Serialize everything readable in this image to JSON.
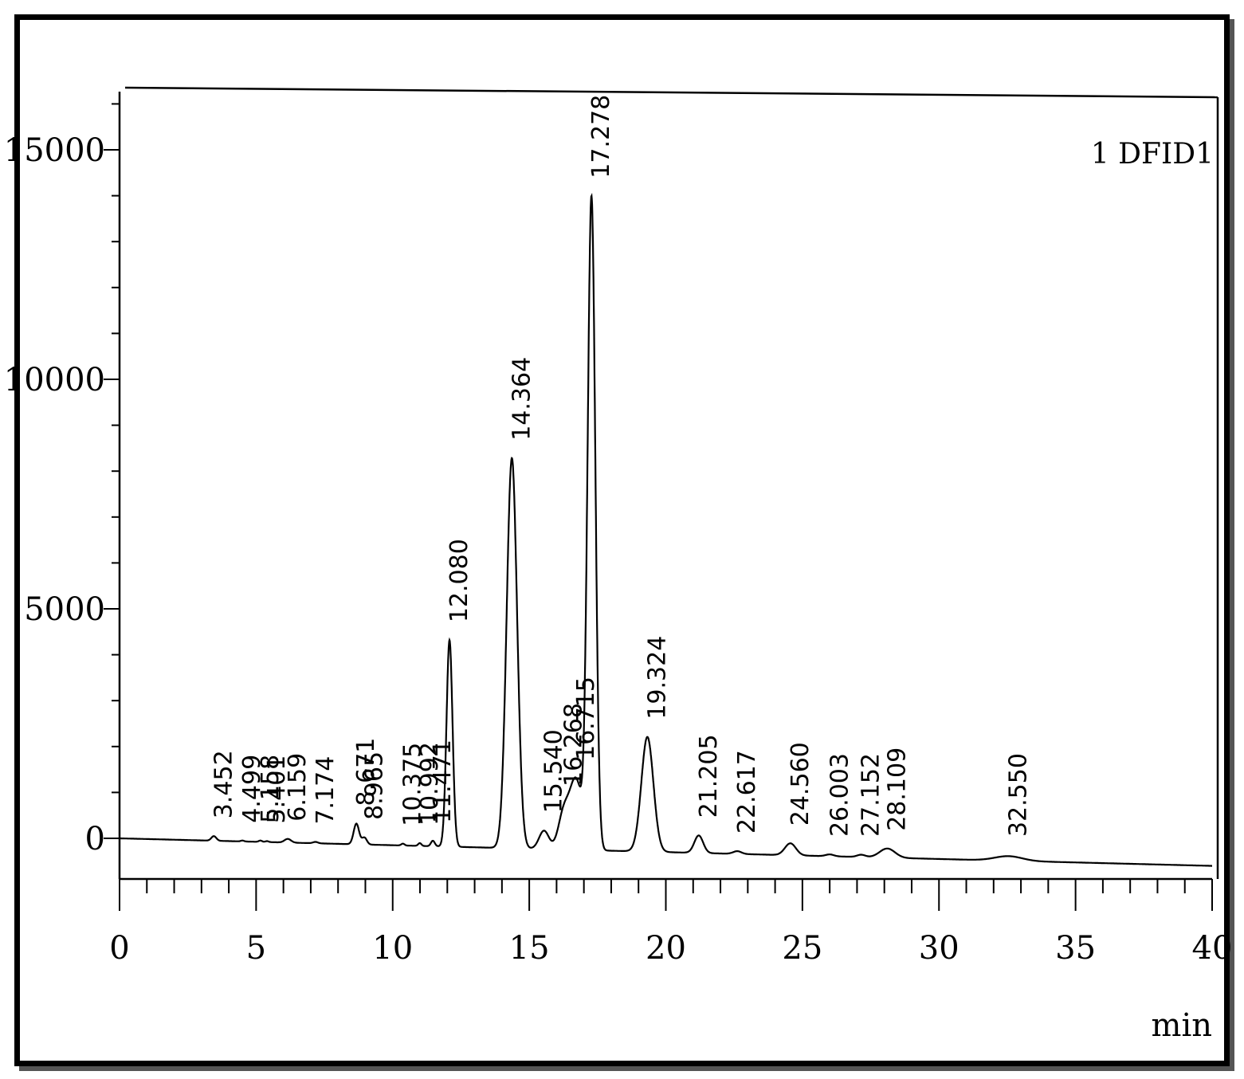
{
  "chart_data": {
    "type": "line",
    "title": "",
    "signal_label": "1 DFID1",
    "xlabel": "min",
    "ylabel": "",
    "xlim": [
      0,
      40
    ],
    "ylim": [
      -900,
      16000
    ],
    "x_ticks": [
      0,
      5,
      10,
      15,
      20,
      25,
      30,
      35,
      40
    ],
    "x_minor_step": 1,
    "y_ticks": [
      0,
      5000,
      10000,
      15000
    ],
    "y_minor_step": 1000,
    "grid": false,
    "legend": "none",
    "colors": {
      "trace": "#000000",
      "axes": "#000000",
      "frame": "#000000"
    },
    "baseline": {
      "start": 0,
      "end": -600
    },
    "peaks": [
      {
        "label": "3.452",
        "rt": 3.452,
        "height": 100,
        "width": 0.09
      },
      {
        "label": "4.499",
        "rt": 4.499,
        "height": 20,
        "width": 0.06
      },
      {
        "label": "5.158",
        "rt": 5.158,
        "height": 30,
        "width": 0.06
      },
      {
        "label": "5.401",
        "rt": 5.401,
        "height": 20,
        "width": 0.06
      },
      {
        "label": "6.159",
        "rt": 6.159,
        "height": 80,
        "width": 0.12
      },
      {
        "label": "7.174",
        "rt": 7.174,
        "height": 30,
        "width": 0.09
      },
      {
        "label": "8.671",
        "rt": 8.671,
        "height": 450,
        "width": 0.1
      },
      {
        "label": "8.965",
        "rt": 8.965,
        "height": 150,
        "width": 0.09
      },
      {
        "label": "10.375",
        "rt": 10.375,
        "height": 40,
        "width": 0.06
      },
      {
        "label": "10.992",
        "rt": 10.992,
        "height": 60,
        "width": 0.06
      },
      {
        "label": "11.471",
        "rt": 11.471,
        "height": 120,
        "width": 0.07
      },
      {
        "label": "12.080",
        "rt": 12.08,
        "height": 4500,
        "width": 0.11
      },
      {
        "label": "14.364",
        "rt": 14.364,
        "height": 8500,
        "width": 0.19
      },
      {
        "label": "15.540",
        "rt": 15.54,
        "height": 400,
        "width": 0.18
      },
      {
        "label": "16.268",
        "rt": 16.268,
        "height": 800,
        "width": 0.2
      },
      {
        "label": "16.715",
        "rt": 16.715,
        "height": 1500,
        "width": 0.22
      },
      {
        "label": "17.278",
        "rt": 17.278,
        "height": 14200,
        "width": 0.14
      },
      {
        "label": "19.324",
        "rt": 19.324,
        "height": 2500,
        "width": 0.22
      },
      {
        "label": "21.205",
        "rt": 21.205,
        "height": 380,
        "width": 0.16
      },
      {
        "label": "22.617",
        "rt": 22.617,
        "height": 60,
        "width": 0.15
      },
      {
        "label": "24.560",
        "rt": 24.56,
        "height": 260,
        "width": 0.2
      },
      {
        "label": "26.003",
        "rt": 26.003,
        "height": 40,
        "width": 0.15
      },
      {
        "label": "27.152",
        "rt": 27.152,
        "height": 50,
        "width": 0.15
      },
      {
        "label": "28.109",
        "rt": 28.109,
        "height": 200,
        "width": 0.28
      },
      {
        "label": "32.550",
        "rt": 32.55,
        "height": 100,
        "width": 0.5
      }
    ]
  }
}
